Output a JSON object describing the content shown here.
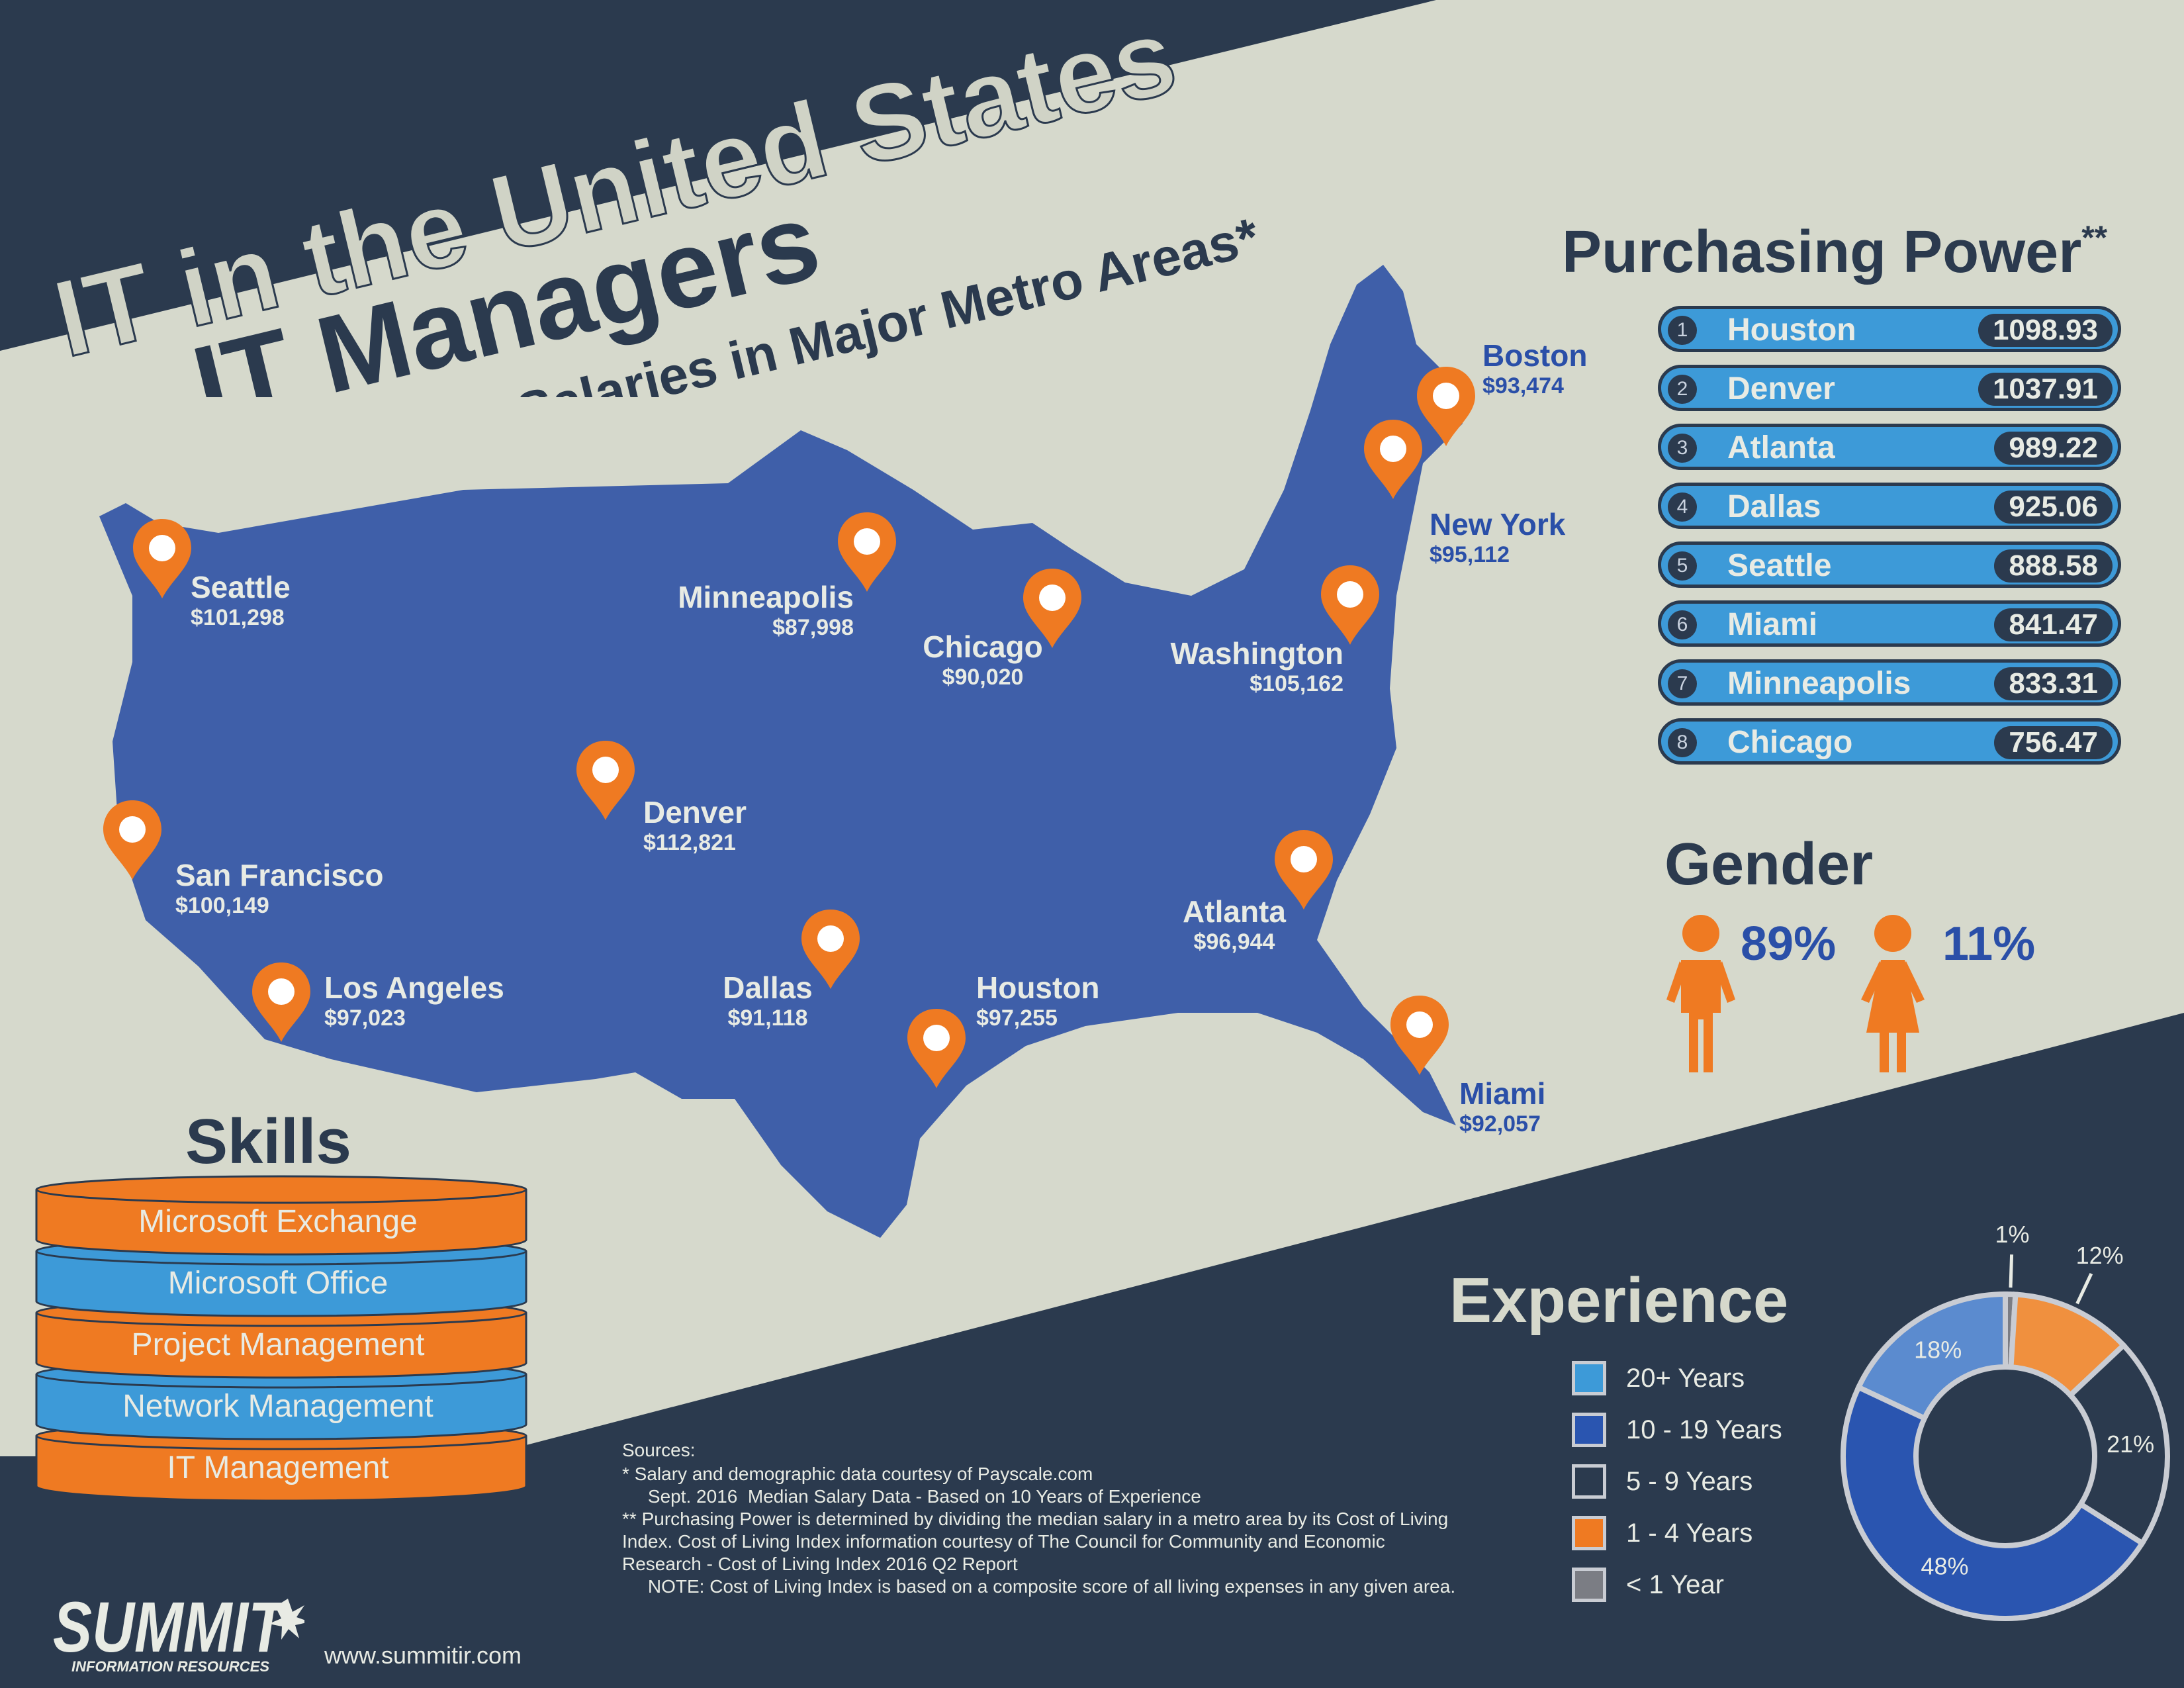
{
  "titles": {
    "line1": "IT in the United States",
    "line2": "IT Managers",
    "subtitle": "Median Salaries in Major Metro Areas*"
  },
  "map": {
    "cities": [
      {
        "name": "Seattle",
        "salary": "$101,298",
        "label_color": "light"
      },
      {
        "name": "Minneapolis",
        "salary": "$87,998",
        "label_color": "light"
      },
      {
        "name": "Chicago",
        "salary": "$90,020",
        "label_color": "light"
      },
      {
        "name": "Washington",
        "salary": "$105,162",
        "label_color": "light"
      },
      {
        "name": "Boston",
        "salary": "$93,474",
        "label_color": "dark"
      },
      {
        "name": "New York",
        "salary": "$95,112",
        "label_color": "dark"
      },
      {
        "name": "Denver",
        "salary": "$112,821",
        "label_color": "light"
      },
      {
        "name": "San Francisco",
        "salary": "$100,149",
        "label_color": "light"
      },
      {
        "name": "Los Angeles",
        "salary": "$97,023",
        "label_color": "light"
      },
      {
        "name": "Dallas",
        "salary": "$91,118",
        "label_color": "light"
      },
      {
        "name": "Houston",
        "salary": "$97,255",
        "label_color": "light"
      },
      {
        "name": "Atlanta",
        "salary": "$96,944",
        "label_color": "light"
      },
      {
        "name": "Miami",
        "salary": "$92,057",
        "label_color": "dark"
      }
    ]
  },
  "purchasing_power": {
    "title": "Purchasing Power",
    "footnote_mark": "**",
    "rows": [
      {
        "rank": "1",
        "city": "Houston",
        "value": "1098.93"
      },
      {
        "rank": "2",
        "city": "Denver",
        "value": "1037.91"
      },
      {
        "rank": "3",
        "city": "Atlanta",
        "value": "989.22"
      },
      {
        "rank": "4",
        "city": "Dallas",
        "value": "925.06"
      },
      {
        "rank": "5",
        "city": "Seattle",
        "value": "888.58"
      },
      {
        "rank": "6",
        "city": "Miami",
        "value": "841.47"
      },
      {
        "rank": "7",
        "city": "Minneapolis",
        "value": "833.31"
      },
      {
        "rank": "8",
        "city": "Chicago",
        "value": "756.47"
      }
    ]
  },
  "gender": {
    "title": "Gender",
    "male_percent": "89%",
    "female_percent": "11%"
  },
  "skills": {
    "title": "Skills",
    "items": [
      {
        "label": "Microsoft Exchange",
        "color": "#ef7a22"
      },
      {
        "label": "Microsoft Office",
        "color": "#3d9ad8"
      },
      {
        "label": "Project Management",
        "color": "#ef7a22"
      },
      {
        "label": "Network Management",
        "color": "#3d9ad8"
      },
      {
        "label": "IT Management",
        "color": "#ef7a22"
      }
    ]
  },
  "experience": {
    "title": "Experience",
    "legend": [
      {
        "label": "20+ Years",
        "color": "#3d9ad8"
      },
      {
        "label": "10 - 19 Years",
        "color": "#2a55b0"
      },
      {
        "label": "5 - 9  Years",
        "color": "#2b3a4e"
      },
      {
        "label": "1 - 4 Years",
        "color": "#ef7a22"
      },
      {
        "label": "< 1 Year",
        "color": "#7b7d84"
      }
    ],
    "segments": [
      {
        "label": "1%",
        "value": 1,
        "color": "#7b7d84"
      },
      {
        "label": "12%",
        "value": 12,
        "color": "#f0903e"
      },
      {
        "label": "21%",
        "value": 21,
        "color": "#2b3a4e"
      },
      {
        "label": "48%",
        "value": 48,
        "color": "#2a55b0"
      },
      {
        "label": "18%",
        "value": 18,
        "color": "#5b8bcf"
      }
    ]
  },
  "sources": {
    "heading": "Sources:",
    "lines": [
      "* Salary and demographic data courtesy of Payscale.com",
      "     Sept. 2016  Median Salary Data - Based on 10 Years of Experience",
      "** Purchasing Power is determined by dividing the median salary in a metro area by its Cost of Living",
      "Index. Cost of Living Index information courtesy of The Council for Community and Economic",
      "Research - Cost of Living Index 2016 Q2 Report",
      "     NOTE: Cost of Living Index is based on a composite score of all living expenses in any given area."
    ]
  },
  "footer": {
    "logo_text": "SUMMIT",
    "logo_tagline": "INFORMATION RESOURCES",
    "website": "www.summitir.com"
  }
}
